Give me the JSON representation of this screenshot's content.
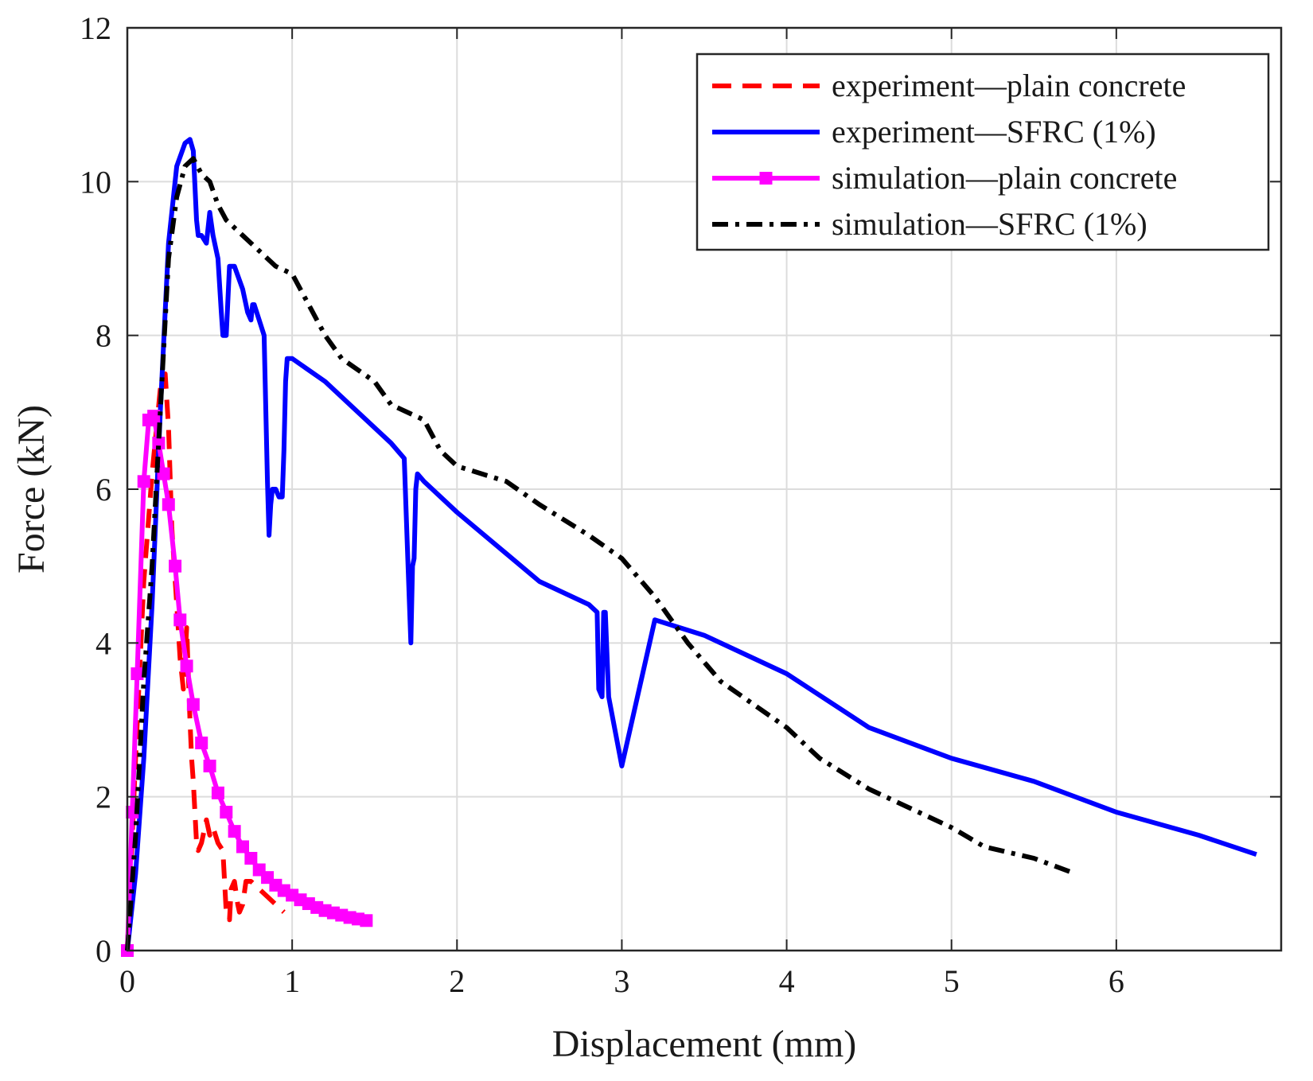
{
  "chart_data": {
    "type": "line",
    "title": "",
    "xlabel": "Displacement (mm)",
    "ylabel": "Force (kN)",
    "xlim": [
      0,
      7
    ],
    "ylim": [
      0,
      12
    ],
    "xticks": [
      "0",
      "1",
      "2",
      "3",
      "4",
      "5",
      "6"
    ],
    "yticks": [
      "0",
      "2",
      "4",
      "6",
      "8",
      "10",
      "12"
    ],
    "grid": true,
    "legend_position": "top-right",
    "series": [
      {
        "name": "experiment—plain concrete",
        "color": "#ff0000",
        "style": "dashed",
        "marker": "none",
        "x": [
          0,
          0.05,
          0.1,
          0.15,
          0.2,
          0.23,
          0.25,
          0.27,
          0.3,
          0.32,
          0.34,
          0.36,
          0.38,
          0.39,
          0.4,
          0.42,
          0.43,
          0.45,
          0.48,
          0.5,
          0.52,
          0.55,
          0.58,
          0.6,
          0.62,
          0.63,
          0.65,
          0.67,
          0.68,
          0.7,
          0.72,
          0.75,
          0.8,
          0.85,
          0.9,
          0.95
        ],
        "y": [
          0,
          2.5,
          4.8,
          6.2,
          7.3,
          7.5,
          6.8,
          5.5,
          4.5,
          3.8,
          3.4,
          4.2,
          3.0,
          2.5,
          2.2,
          1.4,
          1.3,
          1.4,
          1.7,
          1.5,
          1.6,
          1.4,
          1.3,
          0.5,
          0.4,
          0.8,
          0.9,
          0.6,
          0.5,
          0.6,
          0.9,
          0.9,
          0.8,
          0.7,
          0.6,
          0.5
        ]
      },
      {
        "name": "experiment—SFRC (1%)",
        "color": "#0000ff",
        "style": "solid",
        "marker": "none",
        "x": [
          0,
          0.05,
          0.1,
          0.15,
          0.2,
          0.25,
          0.3,
          0.35,
          0.38,
          0.4,
          0.42,
          0.43,
          0.45,
          0.48,
          0.5,
          0.52,
          0.55,
          0.57,
          0.58,
          0.6,
          0.62,
          0.65,
          0.7,
          0.73,
          0.75,
          0.76,
          0.77,
          0.8,
          0.83,
          0.85,
          0.86,
          0.87,
          0.88,
          0.9,
          0.92,
          0.94,
          0.95,
          0.96,
          0.97,
          1.0,
          1.2,
          1.5,
          1.6,
          1.68,
          1.7,
          1.72,
          1.73,
          1.74,
          1.75,
          1.76,
          1.8,
          2.0,
          2.5,
          2.8,
          2.85,
          2.86,
          2.88,
          2.89,
          2.9,
          2.92,
          3.0,
          3.2,
          3.5,
          4.0,
          4.5,
          5.0,
          5.5,
          6.0,
          6.5,
          6.85
        ],
        "y": [
          0,
          1.0,
          2.5,
          4.5,
          7.0,
          9.2,
          10.2,
          10.5,
          10.55,
          10.4,
          9.5,
          9.3,
          9.3,
          9.2,
          9.6,
          9.3,
          9.0,
          8.3,
          8.0,
          8.0,
          8.9,
          8.9,
          8.6,
          8.3,
          8.2,
          8.4,
          8.4,
          8.2,
          8.0,
          6.1,
          5.4,
          5.8,
          6.0,
          6.0,
          5.9,
          5.9,
          6.5,
          7.4,
          7.7,
          7.7,
          7.4,
          6.8,
          6.6,
          6.4,
          5.2,
          4.0,
          5.0,
          5.1,
          6.0,
          6.2,
          6.1,
          5.7,
          4.8,
          4.5,
          4.4,
          3.4,
          3.3,
          4.4,
          4.4,
          3.3,
          2.4,
          4.3,
          4.1,
          3.6,
          2.9,
          2.5,
          2.2,
          1.8,
          1.5,
          1.25
        ]
      },
      {
        "name": "simulation—plain concrete",
        "color": "#ff00ff",
        "style": "solid",
        "marker": "square",
        "x": [
          0,
          0.03,
          0.06,
          0.1,
          0.13,
          0.16,
          0.19,
          0.22,
          0.25,
          0.29,
          0.32,
          0.36,
          0.4,
          0.45,
          0.5,
          0.55,
          0.6,
          0.65,
          0.7,
          0.75,
          0.8,
          0.85,
          0.9,
          0.95,
          1.0,
          1.05,
          1.1,
          1.15,
          1.2,
          1.25,
          1.3,
          1.35,
          1.4,
          1.45
        ],
        "y": [
          0,
          1.8,
          3.6,
          6.1,
          6.9,
          6.95,
          6.6,
          6.2,
          5.8,
          5.0,
          4.3,
          3.7,
          3.2,
          2.7,
          2.4,
          2.05,
          1.8,
          1.55,
          1.35,
          1.2,
          1.05,
          0.95,
          0.85,
          0.78,
          0.72,
          0.66,
          0.61,
          0.56,
          0.52,
          0.49,
          0.46,
          0.43,
          0.41,
          0.39
        ]
      },
      {
        "name": "simulation—SFRC (1%)",
        "color": "#000000",
        "style": "dashdot",
        "marker": "none",
        "x": [
          0,
          0.05,
          0.1,
          0.15,
          0.2,
          0.25,
          0.3,
          0.35,
          0.4,
          0.45,
          0.5,
          0.55,
          0.6,
          0.7,
          0.8,
          0.9,
          1.0,
          1.1,
          1.2,
          1.3,
          1.5,
          1.6,
          1.8,
          1.9,
          2.0,
          2.3,
          2.5,
          2.8,
          3.0,
          3.2,
          3.4,
          3.6,
          3.8,
          4.0,
          4.2,
          4.5,
          4.8,
          5.0,
          5.2,
          5.5,
          5.75
        ],
        "y": [
          0,
          1.5,
          3.5,
          5.0,
          7.0,
          9.0,
          9.8,
          10.2,
          10.3,
          10.1,
          10.0,
          9.7,
          9.5,
          9.3,
          9.1,
          8.9,
          8.8,
          8.4,
          8.0,
          7.7,
          7.4,
          7.1,
          6.9,
          6.5,
          6.3,
          6.1,
          5.8,
          5.4,
          5.1,
          4.6,
          4.0,
          3.5,
          3.2,
          2.9,
          2.5,
          2.1,
          1.8,
          1.6,
          1.35,
          1.2,
          1.0
        ]
      }
    ]
  }
}
